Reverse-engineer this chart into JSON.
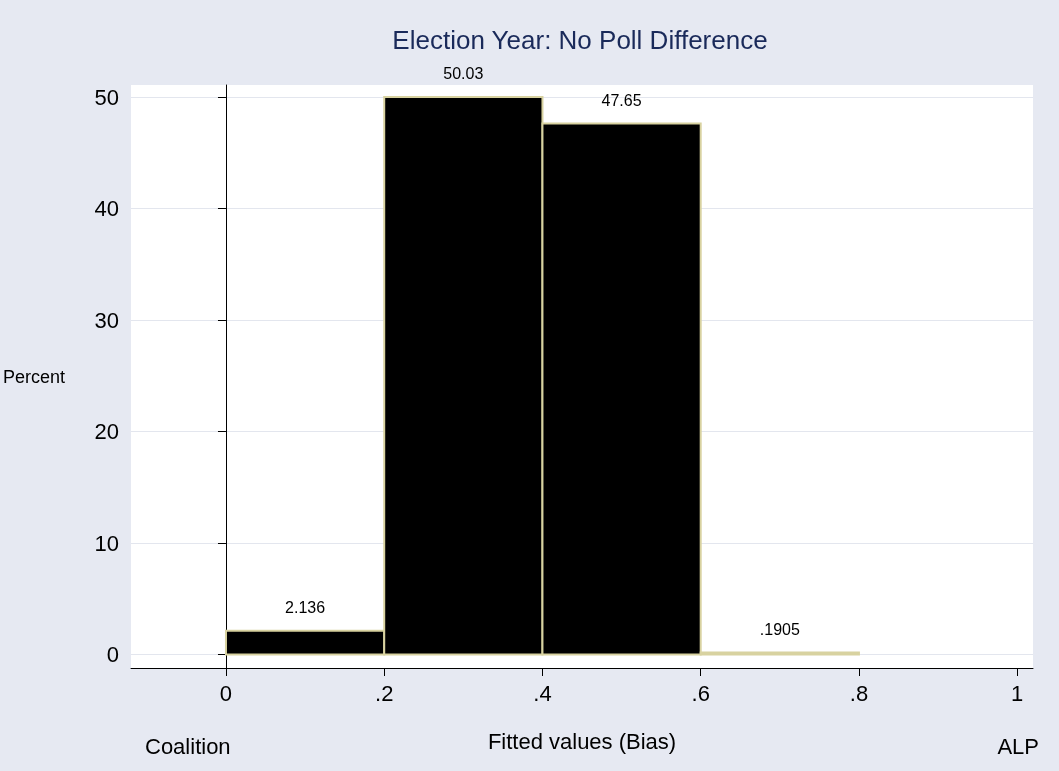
{
  "chart_data": {
    "type": "histogram",
    "title": "Election Year: No Poll Difference",
    "xlabel": "Fitted values (Bias)",
    "ylabel": "Percent",
    "bins": [
      0,
      0.2,
      0.4,
      0.6,
      0.8
    ],
    "values": [
      2.136,
      50.03,
      47.65,
      0.1905
    ],
    "value_labels": [
      "2.136",
      "50.03",
      "47.65",
      ".1905"
    ],
    "color": "#000000",
    "xlim": [
      -0.12,
      1.02
    ],
    "ylim": [
      -1.2,
      51.1
    ],
    "xticks": [
      0,
      {
        "value": 0.2,
        "label": ".2"
      },
      {
        "value": 0.4,
        "label": ".4"
      },
      {
        "value": 0.6,
        "label": ".6"
      },
      {
        "value": 0.8,
        "label": ".8"
      },
      1
    ],
    "yticks": [
      0,
      10,
      20,
      30,
      40,
      50
    ],
    "grid": "y",
    "annotations": [
      "Coalition",
      "ALP"
    ]
  }
}
